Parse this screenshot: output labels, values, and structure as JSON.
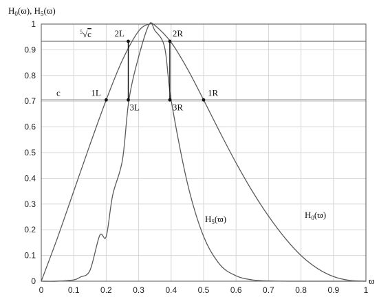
{
  "chart_data": {
    "type": "line",
    "title": "",
    "ylabel": "H0(ϖ), H5(ϖ)",
    "xlabel": "ϖ",
    "xlim": [
      0,
      1
    ],
    "ylim": [
      0,
      1
    ],
    "xticks": [
      "0",
      "0.1",
      "0.2",
      "0.3",
      "0.4",
      "0.5",
      "0.6",
      "0.7",
      "0.8",
      "0.9",
      "1"
    ],
    "yticks": [
      "0",
      "0.1",
      "0.2",
      "0.3",
      "0.4",
      "0.5",
      "0.6",
      "0.7",
      "0.8",
      "0.9",
      "1"
    ],
    "grid": true,
    "series": [
      {
        "name": "H0(ϖ)",
        "label_text": "H",
        "label_sub": "0",
        "label_suffix": "(ϖ)",
        "x": [
          0,
          0.05,
          0.1,
          0.15,
          0.2,
          0.25,
          0.3,
          0.333,
          0.35,
          0.4,
          0.45,
          0.5,
          0.55,
          0.6,
          0.65,
          0.7,
          0.75,
          0.8,
          0.85,
          0.9,
          0.95,
          1.0
        ],
        "y": [
          0,
          0.169,
          0.35,
          0.531,
          0.705,
          0.86,
          0.973,
          1.0,
          0.995,
          0.929,
          0.826,
          0.705,
          0.58,
          0.46,
          0.35,
          0.253,
          0.169,
          0.1,
          0.05,
          0.018,
          0.003,
          0
        ]
      },
      {
        "name": "H5(ϖ)",
        "label_text": "H",
        "label_sub": "5",
        "label_suffix": "(ϖ)",
        "x": [
          0,
          0.05,
          0.1,
          0.12,
          0.15,
          0.18,
          0.2,
          0.22,
          0.25,
          0.27,
          0.3,
          0.333,
          0.35,
          0.38,
          0.4,
          0.45,
          0.5,
          0.55,
          0.6,
          0.65,
          0.7,
          0.8,
          0.9,
          1.0
        ],
        "y": [
          0,
          0.0001,
          0.005,
          0.016,
          0.042,
          0.178,
          0.174,
          0.335,
          0.471,
          0.705,
          0.873,
          1.0,
          0.975,
          0.909,
          0.705,
          0.382,
          0.174,
          0.065,
          0.021,
          0.005,
          0.001,
          0.0,
          0.0,
          0.0
        ]
      }
    ],
    "hlines": [
      {
        "y": 0.933,
        "label": "c",
        "label_prefix": "5"
      },
      {
        "y": 0.705,
        "label": "c",
        "label_prefix": ""
      }
    ],
    "vsegments": [
      {
        "x": 0.268,
        "y0": 0.705,
        "y1": 0.933
      },
      {
        "x": 0.396,
        "y0": 0.705,
        "y1": 0.933
      }
    ],
    "points": [
      {
        "label": "1L",
        "x": 0.2,
        "y": 0.705
      },
      {
        "label": "2L",
        "x": 0.268,
        "y": 0.933
      },
      {
        "label": "3L",
        "x": 0.268,
        "y": 0.705
      },
      {
        "label": "2R",
        "x": 0.396,
        "y": 0.933
      },
      {
        "label": "3R",
        "x": 0.396,
        "y": 0.705
      },
      {
        "label": "1R",
        "x": 0.5,
        "y": 0.705
      }
    ]
  }
}
